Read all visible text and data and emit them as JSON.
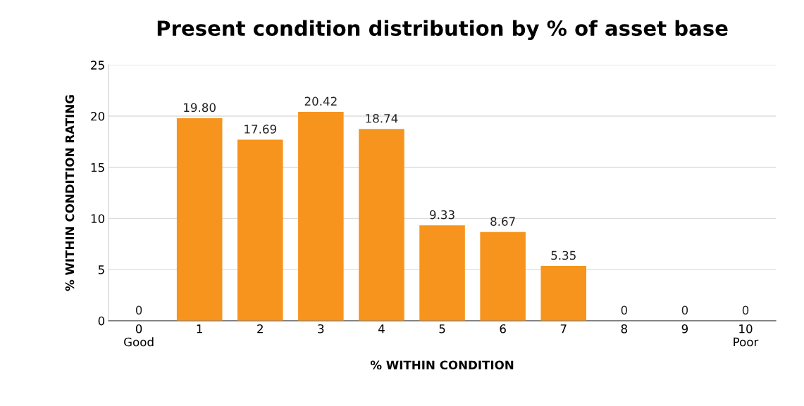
{
  "chart_data": {
    "type": "bar",
    "title": "Present condition distribution by % of asset base",
    "xlabel": "% WITHIN CONDITION",
    "ylabel": "% WITHIN CONDITION RATING",
    "categories": [
      "0\nGood",
      "1",
      "2",
      "3",
      "4",
      "5",
      "6",
      "7",
      "8",
      "9",
      "10\nPoor"
    ],
    "values": [
      0,
      19.8,
      17.69,
      20.42,
      18.74,
      9.33,
      8.67,
      5.35,
      0,
      0,
      0
    ],
    "value_labels": [
      "0",
      "19.80",
      "17.69",
      "20.42",
      "18.74",
      "9.33",
      "8.67",
      "5.35",
      "0",
      "0",
      "0"
    ],
    "color": "#f7941d",
    "ylim": [
      0,
      25
    ],
    "yticks": [
      0,
      5,
      10,
      15,
      20,
      25
    ],
    "grid": "y"
  }
}
